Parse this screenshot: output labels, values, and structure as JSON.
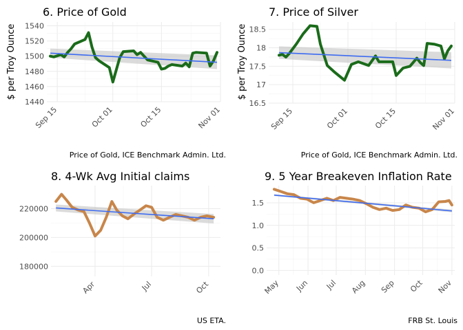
{
  "chart_data": [
    {
      "id": "gold",
      "type": "line",
      "title": "6. Price of Gold",
      "ylabel": "$ per Troy Ounce",
      "caption": "Price of Gold, ICE Benchmark Admin. Ltd.",
      "x_type": "date",
      "xlim": [
        "2019-09-12",
        "2019-11-01"
      ],
      "ylim": [
        1440,
        1545
      ],
      "x_ticks": [
        {
          "date": "2019-09-15",
          "label": "Sep 15"
        },
        {
          "date": "2019-10-01",
          "label": "Oct 01"
        },
        {
          "date": "2019-10-15",
          "label": "Oct 15"
        },
        {
          "date": "2019-11-01",
          "label": "Nov 01"
        }
      ],
      "y_ticks": [
        1440,
        1460,
        1480,
        1500,
        1520,
        1540
      ],
      "series": [
        {
          "color": "#1a6b1a",
          "x": [
            "2019-09-13",
            "2019-09-14",
            "2019-09-16",
            "2019-09-17",
            "2019-09-18",
            "2019-09-19",
            "2019-09-20",
            "2019-09-23",
            "2019-09-24",
            "2019-09-25",
            "2019-09-26",
            "2019-09-27",
            "2019-09-30",
            "2019-10-01",
            "2019-10-02",
            "2019-10-03",
            "2019-10-04",
            "2019-10-07",
            "2019-10-08",
            "2019-10-09",
            "2019-10-10",
            "2019-10-11",
            "2019-10-14",
            "2019-10-15",
            "2019-10-16",
            "2019-10-17",
            "2019-10-18",
            "2019-10-21",
            "2019-10-22",
            "2019-10-23",
            "2019-10-24",
            "2019-10-25",
            "2019-10-28",
            "2019-10-29",
            "2019-10-30",
            "2019-10-31"
          ],
          "y": [
            1500,
            1499,
            1502,
            1499,
            1505,
            1510,
            1516,
            1522,
            1531,
            1512,
            1498,
            1494,
            1485,
            1466,
            1482,
            1498,
            1506,
            1507,
            1502,
            1505,
            1500,
            1495,
            1492,
            1483,
            1484,
            1487,
            1489,
            1487,
            1491,
            1486,
            1504,
            1505,
            1504,
            1487,
            1494,
            1505
          ]
        }
      ],
      "trend": {
        "color": "#3d6bf0",
        "x": [
          "2019-09-13",
          "2019-10-31"
        ],
        "y": [
          1504,
          1492
        ],
        "band": [
          6,
          9
        ]
      }
    },
    {
      "id": "silver",
      "type": "line",
      "title": "7. Price of Silver",
      "ylabel": "$ per Troy Ounce",
      "caption": "Price of Gold, ICE Benchmark Admin. Ltd.",
      "x_type": "date",
      "xlim": [
        "2019-09-08",
        "2019-11-01"
      ],
      "ylim": [
        16.5,
        18.7
      ],
      "x_ticks": [
        {
          "date": "2019-09-15",
          "label": "Sep 15"
        },
        {
          "date": "2019-10-01",
          "label": "Oct 01"
        },
        {
          "date": "2019-10-15",
          "label": "Oct 15"
        },
        {
          "date": "2019-11-01",
          "label": "Nov 01"
        }
      ],
      "y_ticks": [
        16.5,
        17.0,
        17.5,
        18.0,
        18.5
      ],
      "series": [
        {
          "color": "#1a6b1a",
          "x": [
            "2019-09-11",
            "2019-09-12",
            "2019-09-13",
            "2019-09-14",
            "2019-09-16",
            "2019-09-18",
            "2019-09-20",
            "2019-09-22",
            "2019-09-23",
            "2019-09-25",
            "2019-09-27",
            "2019-09-30",
            "2019-10-02",
            "2019-10-04",
            "2019-10-07",
            "2019-10-09",
            "2019-10-10",
            "2019-10-12",
            "2019-10-14",
            "2019-10-15",
            "2019-10-17",
            "2019-10-19",
            "2019-10-21",
            "2019-10-22",
            "2019-10-23",
            "2019-10-24",
            "2019-10-26",
            "2019-10-28",
            "2019-10-29",
            "2019-10-30",
            "2019-10-31"
          ],
          "y": [
            17.8,
            17.82,
            17.75,
            17.85,
            18.1,
            18.38,
            18.6,
            18.58,
            18.1,
            17.52,
            17.35,
            17.12,
            17.55,
            17.62,
            17.52,
            17.78,
            17.62,
            17.62,
            17.62,
            17.25,
            17.45,
            17.5,
            17.72,
            17.6,
            17.52,
            18.12,
            18.1,
            18.05,
            17.7,
            17.92,
            18.05
          ]
        }
      ],
      "trend": {
        "color": "#3d6bf0",
        "x": [
          "2019-09-11",
          "2019-10-31"
        ],
        "y": [
          17.87,
          17.66
        ],
        "band": [
          0.17,
          0.22
        ]
      }
    },
    {
      "id": "claims",
      "type": "line",
      "title": "8. 4-Wk Avg Initial claims",
      "caption": "US ETA.",
      "x_type": "date",
      "xlim": [
        "2019-01-20",
        "2019-10-20"
      ],
      "ylim": [
        173000,
        236000
      ],
      "x_ticks": [
        {
          "date": "2019-04-01",
          "label": "Apr"
        },
        {
          "date": "2019-07-01",
          "label": "Jul"
        },
        {
          "date": "2019-10-01",
          "label": "Oct"
        }
      ],
      "y_ticks": [
        {
          "value": 180000,
          "label": "180000"
        },
        {
          "value": 200000,
          "label": "200000"
        },
        {
          "value": 220000,
          "label": "220000"
        }
      ],
      "series": [
        {
          "color": "#c8864a",
          "x": [
            "2019-01-28",
            "2019-02-06",
            "2019-02-14",
            "2019-02-23",
            "2019-03-05",
            "2019-03-14",
            "2019-03-23",
            "2019-04-01",
            "2019-04-10",
            "2019-04-19",
            "2019-04-28",
            "2019-05-06",
            "2019-05-15",
            "2019-05-24",
            "2019-06-02",
            "2019-06-12",
            "2019-06-22",
            "2019-07-01",
            "2019-07-10",
            "2019-07-20",
            "2019-07-30",
            "2019-08-09",
            "2019-08-19",
            "2019-08-29",
            "2019-09-08",
            "2019-09-18",
            "2019-09-28",
            "2019-10-09"
          ],
          "y": [
            225000,
            230000,
            226000,
            221000,
            219000,
            218000,
            210000,
            201000,
            205000,
            214000,
            225000,
            219000,
            215000,
            213000,
            216000,
            219000,
            222000,
            221000,
            214000,
            212000,
            214000,
            216000,
            215000,
            214000,
            212000,
            214000,
            215000,
            214000
          ]
        }
      ],
      "trend": {
        "color": "#3d6bf0",
        "x": [
          "2019-01-28",
          "2019-10-09"
        ],
        "y": [
          220500,
          213000
        ],
        "band": [
          2400,
          3300
        ]
      }
    },
    {
      "id": "breakeven",
      "type": "line",
      "title": "9. 5 Year Breakeven Inflation Rate",
      "caption": "FRB St. Louis",
      "x_type": "date",
      "xlim": [
        "2019-04-18",
        "2019-11-04"
      ],
      "ylim": [
        -0.1,
        1.88
      ],
      "x_ticks": [
        {
          "date": "2019-05-01",
          "label": "May"
        },
        {
          "date": "2019-06-01",
          "label": "Jun"
        },
        {
          "date": "2019-07-01",
          "label": "Jul"
        },
        {
          "date": "2019-08-01",
          "label": "Aug"
        },
        {
          "date": "2019-09-01",
          "label": "Sep"
        },
        {
          "date": "2019-10-01",
          "label": "Oct"
        },
        {
          "date": "2019-11-01",
          "label": "Nov"
        }
      ],
      "y_ticks": [
        {
          "value": 0.0,
          "label": "0.0"
        },
        {
          "value": 0.5,
          "label": "0.5"
        },
        {
          "value": 1.0,
          "label": "1.0"
        },
        {
          "value": 1.5,
          "label": "1.5"
        }
      ],
      "series": [
        {
          "color": "#c8864a",
          "x": [
            "2019-04-26",
            "2019-05-03",
            "2019-05-10",
            "2019-05-17",
            "2019-05-24",
            "2019-05-31",
            "2019-06-07",
            "2019-06-14",
            "2019-06-21",
            "2019-06-28",
            "2019-07-05",
            "2019-07-12",
            "2019-07-19",
            "2019-07-26",
            "2019-08-02",
            "2019-08-09",
            "2019-08-16",
            "2019-08-23",
            "2019-08-30",
            "2019-09-06",
            "2019-09-13",
            "2019-09-20",
            "2019-09-27",
            "2019-10-04",
            "2019-10-11",
            "2019-10-18",
            "2019-10-25",
            "2019-10-29",
            "2019-11-01"
          ],
          "y": [
            1.8,
            1.75,
            1.7,
            1.68,
            1.6,
            1.58,
            1.5,
            1.55,
            1.6,
            1.55,
            1.62,
            1.6,
            1.58,
            1.55,
            1.48,
            1.4,
            1.35,
            1.38,
            1.33,
            1.35,
            1.45,
            1.4,
            1.38,
            1.3,
            1.35,
            1.52,
            1.53,
            1.55,
            1.45
          ]
        }
      ],
      "trend": {
        "color": "#3d6bf0",
        "x": [
          "2019-04-26",
          "2019-11-01"
        ],
        "y": [
          1.67,
          1.32
        ],
        "band": [
          0.02,
          0.03
        ]
      }
    }
  ]
}
